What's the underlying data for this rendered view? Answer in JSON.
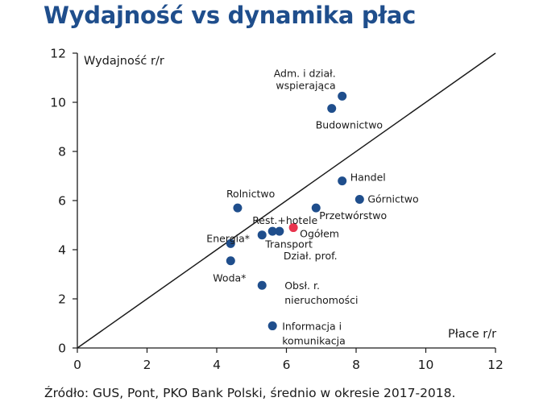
{
  "title": "Wydajność vs dynamika płac",
  "source": "Źródło: GUS, Pont, PKO Bank Polski, średnio w okresie 2017-2018.",
  "chart_data": {
    "type": "scatter",
    "xlabel": "Płace r/r",
    "ylabel": "Wydajność r/r",
    "xlim": [
      0,
      12
    ],
    "ylim": [
      0,
      12
    ],
    "xticks": [
      "0",
      "2",
      "4",
      "6",
      "8",
      "10",
      "12"
    ],
    "yticks": [
      "0",
      "2",
      "4",
      "6",
      "8",
      "10",
      "12"
    ],
    "grid": false,
    "reference_line": {
      "x": [
        0,
        12
      ],
      "y": [
        0,
        12
      ]
    },
    "colors": {
      "sector": "#1f4e8c",
      "total": "#e8344e",
      "line": "#1a1a1a",
      "axis": "#1a1a1a"
    },
    "points": [
      {
        "name": "Adm. i dział. wspierająca",
        "label_lines": [
          "Adm. i dział.",
          "wspierająca"
        ],
        "x": 7.6,
        "y": 10.25,
        "highlight": false
      },
      {
        "name": "Budownictwo",
        "label_lines": [
          "Budownictwo"
        ],
        "x": 7.3,
        "y": 9.75,
        "highlight": false
      },
      {
        "name": "Handel",
        "label_lines": [
          "Handel"
        ],
        "x": 7.6,
        "y": 6.8,
        "highlight": false
      },
      {
        "name": "Górnictwo",
        "label_lines": [
          "Górnictwo"
        ],
        "x": 8.1,
        "y": 6.05,
        "highlight": false
      },
      {
        "name": "Rolnictwo",
        "label_lines": [
          "Rolnictwo"
        ],
        "x": 4.6,
        "y": 5.7,
        "highlight": false
      },
      {
        "name": "Przetwórstwo",
        "label_lines": [
          "Przetwórstwo"
        ],
        "x": 6.85,
        "y": 5.7,
        "highlight": false
      },
      {
        "name": "Rest.+hotele",
        "label_lines": [
          "Rest.+hotele"
        ],
        "x": 5.6,
        "y": 4.75,
        "highlight": false
      },
      {
        "name": "Dział. prof.",
        "label_lines": [
          "Dział. prof."
        ],
        "x": 5.8,
        "y": 4.75,
        "highlight": false
      },
      {
        "name": "Ogółem",
        "label_lines": [
          "Ogółem"
        ],
        "x": 6.2,
        "y": 4.9,
        "highlight": true
      },
      {
        "name": "Transport",
        "label_lines": [
          "Transport"
        ],
        "x": 5.3,
        "y": 4.6,
        "highlight": false
      },
      {
        "name": "Energia*",
        "label_lines": [
          "Energia*"
        ],
        "x": 4.4,
        "y": 4.25,
        "highlight": false
      },
      {
        "name": "Woda*",
        "label_lines": [
          "Woda*"
        ],
        "x": 4.4,
        "y": 3.55,
        "highlight": false
      },
      {
        "name": "Obsł. r. nieruchomości",
        "label_lines": [
          "Obsł. r.",
          "nieruchomości"
        ],
        "x": 5.3,
        "y": 2.55,
        "highlight": false
      },
      {
        "name": "Informacja i komunikacja",
        "label_lines": [
          "Informacja i",
          "komunikacja"
        ],
        "x": 5.6,
        "y": 0.9,
        "highlight": false
      }
    ]
  }
}
